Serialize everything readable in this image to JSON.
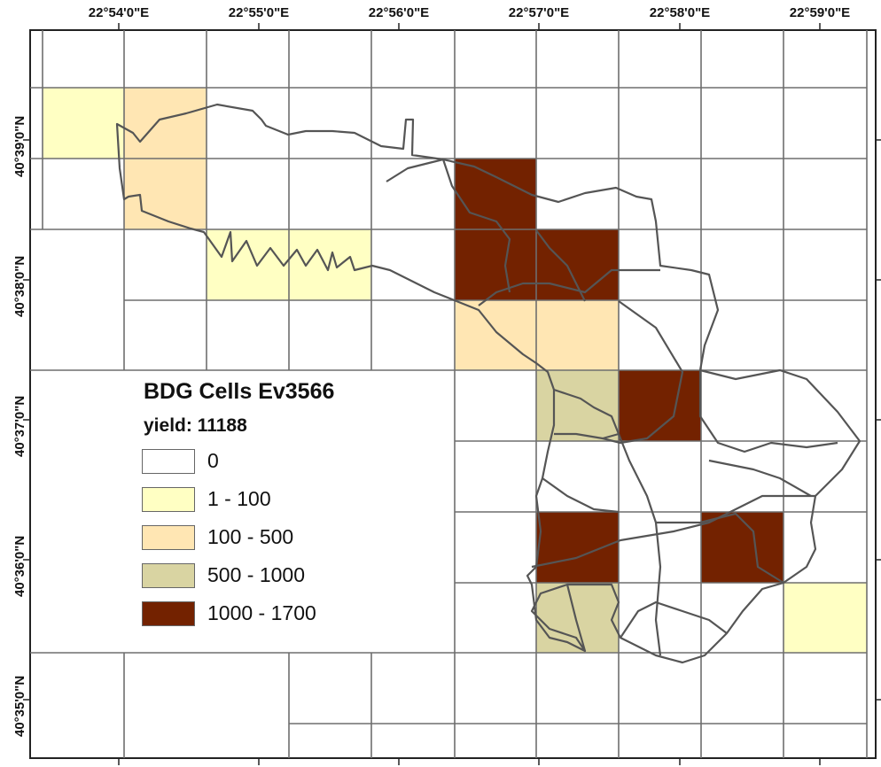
{
  "map": {
    "x_axis_labels": [
      "22°54'0\"E",
      "22°55'0\"E",
      "22°56'0\"E",
      "22°57'0\"E",
      "22°58'0\"E",
      "22°59'0\"E"
    ],
    "y_axis_labels": [
      "40°39'0\"N",
      "40°38'0\"N",
      "40°37'0\"N",
      "40°36'0\"N",
      "40°35'0\"N"
    ],
    "legend": {
      "title": "BDG Cells Ev3566",
      "subtitle": "yield: 11188",
      "classes": [
        {
          "label": "0",
          "color": "#ffffff"
        },
        {
          "label": "1 - 100",
          "color": "#ffffc3"
        },
        {
          "label": "100 - 500",
          "color": "#ffe6b3"
        },
        {
          "label": "500 - 1000",
          "color": "#d9d4a2"
        },
        {
          "label": "1000 - 1700",
          "color": "#732200"
        }
      ]
    },
    "cells": [
      {
        "col": 0,
        "row": 1,
        "class": 1
      },
      {
        "col": 1,
        "row": 1,
        "class": 2
      },
      {
        "col": 1,
        "row": 2,
        "class": 2
      },
      {
        "col": 2,
        "row": 3,
        "class": 1
      },
      {
        "col": 3,
        "row": 3,
        "class": 1
      },
      {
        "col": 5,
        "row": 2,
        "class": 4
      },
      {
        "col": 5,
        "row": 3,
        "class": 4
      },
      {
        "col": 6,
        "row": 3,
        "class": 4
      },
      {
        "col": 5,
        "row": 4,
        "class": 2
      },
      {
        "col": 6,
        "row": 4,
        "class": 2
      },
      {
        "col": 6,
        "row": 5,
        "class": 3
      },
      {
        "col": 7,
        "row": 5,
        "class": 4
      },
      {
        "col": 6,
        "row": 7,
        "class": 4
      },
      {
        "col": 8,
        "row": 7,
        "class": 4
      },
      {
        "col": 6,
        "row": 8,
        "class": 3
      },
      {
        "col": 9,
        "row": 8,
        "class": 1
      }
    ]
  }
}
